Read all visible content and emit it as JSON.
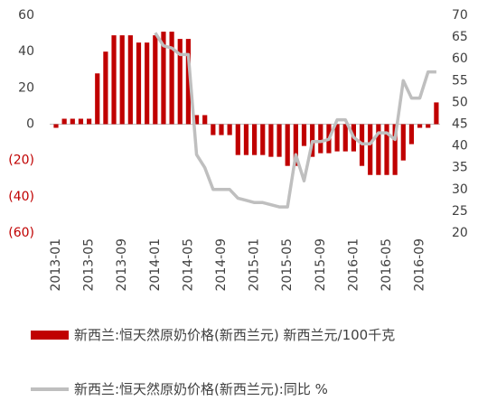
{
  "chart_data": {
    "type": "bar_line",
    "categories": [
      "2013-01",
      null,
      null,
      null,
      "2013-05",
      null,
      null,
      null,
      "2013-09",
      null,
      null,
      null,
      "2014-01",
      null,
      null,
      null,
      "2014-05",
      null,
      null,
      null,
      "2014-09",
      null,
      null,
      null,
      "2015-01",
      null,
      null,
      null,
      "2015-05",
      null,
      null,
      null,
      "2015-09",
      null,
      null,
      null,
      "2016-01",
      null,
      null,
      null,
      "2016-05",
      null,
      null,
      null,
      "2016-09",
      null,
      null
    ],
    "series": [
      {
        "name": "新西兰:恒天然原奶价格(新西兰元) 新西兰元/100千克",
        "type": "bar",
        "color": "#c00000",
        "values": [
          -2,
          3,
          3,
          3,
          3,
          28,
          40,
          49,
          49,
          49,
          45,
          45,
          49,
          51,
          51,
          47,
          47,
          5,
          5,
          -6,
          -6,
          -6,
          -17,
          -17,
          -17,
          -17,
          -18,
          -18,
          -23,
          -23,
          -12,
          -18,
          -16,
          -16,
          -15,
          -15,
          -15,
          -23,
          -28,
          -28,
          -28,
          -28,
          -20,
          -11,
          -2,
          -2,
          12
        ]
      },
      {
        "name": "新西兰:恒天然原奶价格(新西兰元):同比 %",
        "type": "line",
        "axis": "y2",
        "color": "#bfbfbf",
        "values": [
          null,
          null,
          null,
          null,
          null,
          null,
          null,
          null,
          null,
          null,
          null,
          null,
          66,
          63,
          62.5,
          61,
          61,
          38,
          35,
          30,
          30,
          30,
          28,
          27.5,
          27,
          27,
          26.5,
          26,
          26,
          38,
          32,
          41,
          41,
          41.5,
          46,
          46,
          42,
          40.5,
          40.5,
          43,
          43,
          41.5,
          55,
          51,
          51,
          57,
          57
        ]
      }
    ],
    "ylim": [
      -60,
      60
    ],
    "yticks": [
      60,
      40,
      20,
      0,
      {
        "value": -20,
        "label": "(20)"
      },
      {
        "value": -40,
        "label": "(40)"
      },
      {
        "value": -60,
        "label": "(60)"
      }
    ],
    "ytick_negative_color": "#c00000",
    "y2lim": [
      20,
      70
    ],
    "y2ticks": [
      20,
      25,
      30,
      35,
      40,
      45,
      50,
      55,
      60,
      65,
      70
    ]
  }
}
